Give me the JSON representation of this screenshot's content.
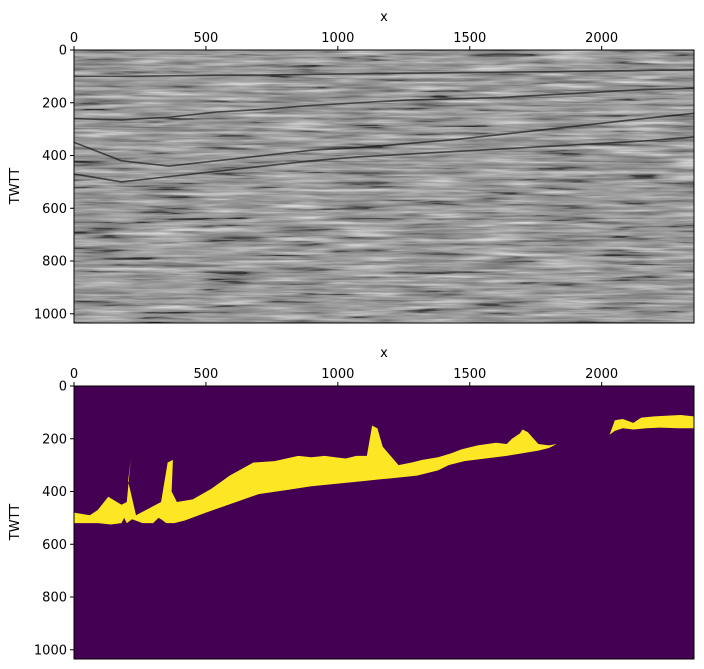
{
  "chart_data": [
    {
      "type": "heatmap",
      "colormap": "gray",
      "xlabel": "x",
      "ylabel": "TWTT",
      "x_axis_position": "top",
      "xlim": [
        0,
        2350
      ],
      "ylim": [
        1035,
        0
      ],
      "xticks": [
        0,
        500,
        1000,
        1500,
        2000
      ],
      "xtick_labels": [
        "0",
        "500",
        "1000",
        "1500",
        "2000"
      ],
      "yticks": [
        0,
        200,
        400,
        600,
        800,
        1000
      ],
      "ytick_labels": [
        "0",
        "200",
        "400",
        "600",
        "800",
        "1000"
      ],
      "horizons": [
        {
          "twtt": [
            100,
            100,
            98,
            96,
            95,
            92,
            90,
            88,
            86,
            84,
            82,
            80,
            78,
            75
          ]
        },
        {
          "twtt": [
            260,
            265,
            255,
            235,
            225,
            210,
            200,
            190,
            185,
            180,
            170,
            160,
            150,
            145
          ]
        },
        {
          "twtt": [
            350,
            420,
            440,
            420,
            400,
            380,
            370,
            355,
            340,
            320,
            300,
            280,
            260,
            240
          ]
        },
        {
          "twtt": [
            470,
            500,
            480,
            460,
            440,
            420,
            405,
            395,
            385,
            375,
            365,
            355,
            345,
            330
          ]
        }
      ],
      "horizon_x": [
        0,
        180,
        360,
        540,
        720,
        900,
        1080,
        1260,
        1440,
        1620,
        1800,
        1980,
        2160,
        2350
      ]
    },
    {
      "type": "heatmap",
      "colormap": "viridis-binary",
      "xlabel": "x",
      "ylabel": "TWTT",
      "x_axis_position": "top",
      "xlim": [
        0,
        2350
      ],
      "ylim": [
        1035,
        0
      ],
      "xticks": [
        0,
        500,
        1000,
        1500,
        2000
      ],
      "xtick_labels": [
        "0",
        "500",
        "1000",
        "1500",
        "2000"
      ],
      "yticks": [
        0,
        200,
        400,
        600,
        800,
        1000
      ],
      "ytick_labels": [
        "0",
        "200",
        "400",
        "600",
        "800",
        "1000"
      ],
      "colors": {
        "background": "#440154",
        "mask": "#fde725"
      },
      "mask_regions": [
        {
          "x": [
            0,
            60,
            90,
            130,
            180,
            200,
            215,
            205,
            235,
            330,
            355,
            375,
            370,
            390,
            450,
            520,
            590,
            680,
            760,
            850,
            900,
            950,
            990,
            1030,
            1070,
            1110,
            1130,
            1150,
            1170,
            1230,
            1280,
            1320,
            1380,
            1430,
            1470,
            1530,
            1600,
            1640,
            1660,
            1690,
            1700,
            1720,
            1760,
            1800,
            1830,
            1800,
            1760,
            1700,
            1640,
            1560,
            1480,
            1420,
            1380,
            1300,
            1200,
            1100,
            1000,
            900,
            800,
            700,
            600,
            500,
            420,
            380,
            350,
            330,
            320,
            300,
            260,
            220,
            200,
            190,
            180,
            140,
            90,
            0
          ],
          "twtt": [
            480,
            490,
            470,
            420,
            450,
            440,
            280,
            360,
            490,
            440,
            290,
            280,
            400,
            440,
            430,
            390,
            340,
            290,
            285,
            265,
            270,
            265,
            270,
            275,
            265,
            265,
            150,
            160,
            230,
            300,
            290,
            280,
            270,
            255,
            240,
            225,
            215,
            220,
            200,
            180,
            165,
            175,
            220,
            225,
            220,
            235,
            245,
            255,
            265,
            275,
            285,
            300,
            320,
            340,
            350,
            360,
            370,
            380,
            395,
            410,
            445,
            480,
            510,
            520,
            520,
            505,
            500,
            520,
            520,
            505,
            520,
            500,
            520,
            525,
            520,
            520
          ]
        },
        {
          "x": [
            2030,
            2050,
            2080,
            2120,
            2150,
            2200,
            2260,
            2300,
            2350,
            2350,
            2290,
            2220,
            2170,
            2120,
            2080,
            2050,
            2030
          ],
          "twtt": [
            185,
            130,
            125,
            140,
            120,
            115,
            112,
            110,
            115,
            160,
            160,
            158,
            160,
            165,
            160,
            170,
            185
          ]
        }
      ]
    }
  ]
}
